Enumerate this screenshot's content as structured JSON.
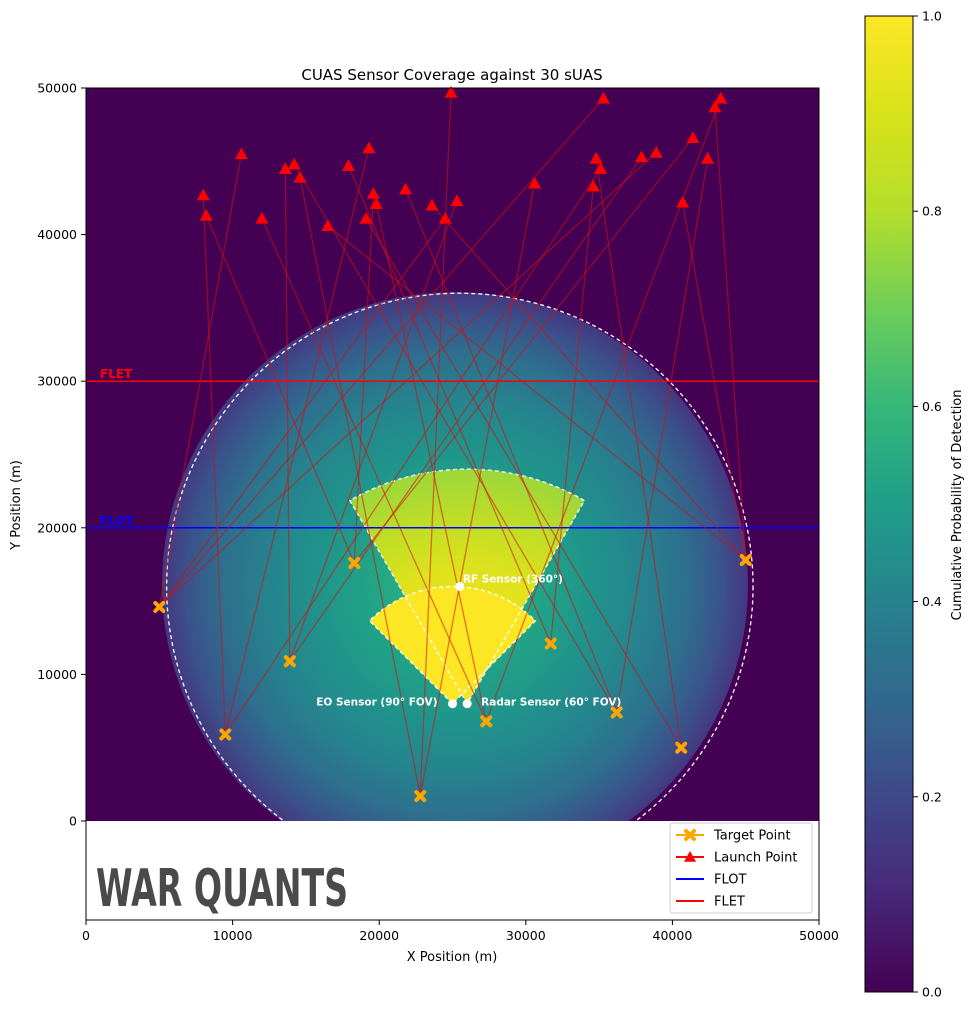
{
  "chart_data": {
    "type": "scatter",
    "title": "CUAS Sensor Coverage against 30 sUAS",
    "xlabel": "X Position (m)",
    "ylabel": "Y Position (m)",
    "xlim": [
      0,
      50000
    ],
    "ylim": [
      -6500,
      50000
    ],
    "x_ticks": [
      0,
      10000,
      20000,
      30000,
      40000,
      50000
    ],
    "x_tick_labels": [
      "0",
      "10000",
      "20000",
      "30000",
      "40000",
      "50000"
    ],
    "y_ticks": [
      0,
      10000,
      20000,
      30000,
      40000,
      50000
    ],
    "y_tick_labels": [
      "0",
      "10000",
      "20000",
      "30000",
      "40000",
      "50000"
    ],
    "heatmap": {
      "extent": [
        0,
        50000,
        0,
        50000
      ],
      "colormap": "viridis",
      "coverage_circle": {
        "center": [
          25500,
          16000
        ],
        "radius": 20000
      },
      "rf_sensor": {
        "position": [
          25500,
          16000
        ],
        "range": 20000
      },
      "radar_sensor": {
        "position": [
          26000,
          8000
        ],
        "range": 16000,
        "fov_deg": 60
      },
      "eo_sensor": {
        "position": [
          25000,
          8000
        ],
        "range": 8000,
        "fov_deg": 90
      }
    },
    "colorbar": {
      "label": "Cumulative Probability of Detection",
      "range": [
        0,
        1
      ],
      "ticks": [
        0.0,
        0.2,
        0.4,
        0.6,
        0.8,
        1.0
      ],
      "tick_labels": [
        "0.0",
        "0.2",
        "0.4",
        "0.6",
        "0.8",
        "1.0"
      ]
    },
    "reference_lines": [
      {
        "name": "FLOT",
        "y": 20000,
        "color": "#0000ff",
        "label": "FLOT"
      },
      {
        "name": "FLET",
        "y": 30000,
        "color": "#ff0000",
        "label": "FLET"
      }
    ],
    "sensors": [
      {
        "label": "RF Sensor (360°)",
        "x": 25500,
        "y": 16000
      },
      {
        "label": "Radar Sensor (60° FOV)",
        "x": 26000,
        "y": 8000
      },
      {
        "label": "EO Sensor (90° FOV)",
        "x": 25000,
        "y": 8000
      }
    ],
    "target_points": [
      [
        5000,
        14600
      ],
      [
        9500,
        5900
      ],
      [
        13900,
        10900
      ],
      [
        18300,
        17600
      ],
      [
        22800,
        1700
      ],
      [
        27300,
        6800
      ],
      [
        31700,
        12100
      ],
      [
        36200,
        7400
      ],
      [
        40600,
        5000
      ],
      [
        45000,
        17800
      ]
    ],
    "launch_points": [
      [
        8000,
        42700
      ],
      [
        8200,
        41300
      ],
      [
        10600,
        45500
      ],
      [
        12000,
        41100
      ],
      [
        13600,
        44500
      ],
      [
        14200,
        44800
      ],
      [
        14600,
        43900
      ],
      [
        16500,
        40600
      ],
      [
        17900,
        44700
      ],
      [
        19100,
        41100
      ],
      [
        19300,
        45900
      ],
      [
        19600,
        42800
      ],
      [
        19800,
        42100
      ],
      [
        21800,
        43100
      ],
      [
        23600,
        42000
      ],
      [
        24500,
        41100
      ],
      [
        24900,
        49700
      ],
      [
        25300,
        42300
      ],
      [
        30600,
        43500
      ],
      [
        34600,
        43300
      ],
      [
        34800,
        45200
      ],
      [
        35100,
        44500
      ],
      [
        35300,
        49300
      ],
      [
        37900,
        45300
      ],
      [
        38900,
        45600
      ],
      [
        40700,
        42200
      ],
      [
        41400,
        46600
      ],
      [
        42400,
        45200
      ],
      [
        42900,
        48700
      ],
      [
        43300,
        49300
      ]
    ],
    "trajectories": [
      [
        0,
        1
      ],
      [
        1,
        3
      ],
      [
        2,
        0
      ],
      [
        3,
        5
      ],
      [
        4,
        2
      ],
      [
        5,
        7
      ],
      [
        6,
        4
      ],
      [
        7,
        9
      ],
      [
        8,
        6
      ],
      [
        9,
        8
      ],
      [
        10,
        1
      ],
      [
        11,
        3
      ],
      [
        12,
        5
      ],
      [
        13,
        7
      ],
      [
        14,
        9
      ],
      [
        15,
        0
      ],
      [
        16,
        4
      ],
      [
        17,
        2
      ],
      [
        18,
        4
      ],
      [
        19,
        6
      ],
      [
        20,
        8
      ],
      [
        21,
        1
      ],
      [
        22,
        0
      ],
      [
        23,
        2
      ],
      [
        24,
        0
      ],
      [
        25,
        9
      ],
      [
        26,
        3
      ],
      [
        27,
        7
      ],
      [
        28,
        9
      ],
      [
        29,
        5
      ]
    ],
    "legend": {
      "placement": "lower-right",
      "entries": [
        {
          "label": "Target Point",
          "color": "#ffa500",
          "marker": "x-marker"
        },
        {
          "label": "Launch Point",
          "color": "#ff0000",
          "marker": "triangle"
        },
        {
          "label": "FLOT",
          "color": "#0000ff",
          "marker": "line"
        },
        {
          "label": "FLET",
          "color": "#ff0000",
          "marker": "line"
        }
      ]
    }
  },
  "watermark": "WAR QUANTS"
}
